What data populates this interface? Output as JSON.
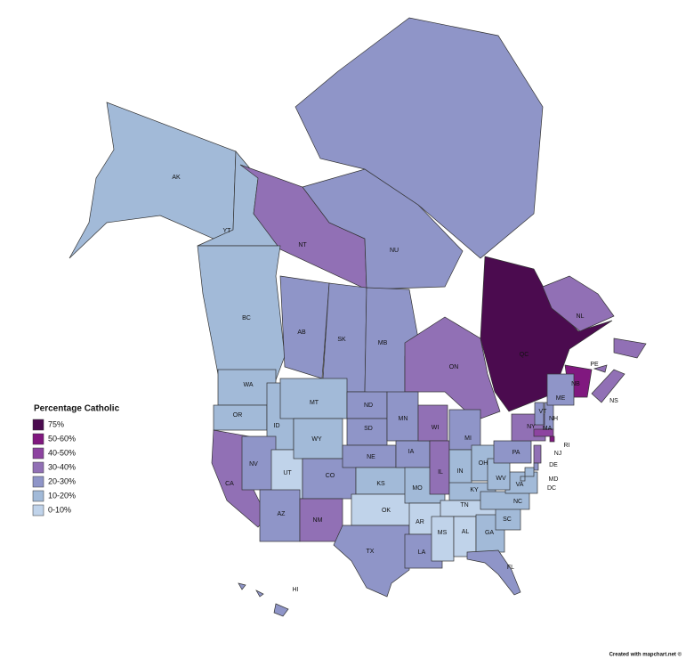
{
  "legend": {
    "title": "Percentage Catholic",
    "items": [
      {
        "label": "75%",
        "color": "#4b0b4f"
      },
      {
        "label": "50-60%",
        "color": "#80187f"
      },
      {
        "label": "40-50%",
        "color": "#8d44a0"
      },
      {
        "label": "30-40%",
        "color": "#9170b5"
      },
      {
        "label": "20-30%",
        "color": "#8f95c8"
      },
      {
        "label": "10-20%",
        "color": "#a2bad8"
      },
      {
        "label": "0-10%",
        "color": "#c0d3ea"
      }
    ]
  },
  "regions": [
    {
      "label": "AK",
      "color": "#a2bad8"
    },
    {
      "label": "YT",
      "color": "#a2bad8"
    },
    {
      "label": "NT",
      "color": "#9170b5"
    },
    {
      "label": "NU",
      "color": "#8f95c8"
    },
    {
      "label": "BC",
      "color": "#a2bad8"
    },
    {
      "label": "AB",
      "color": "#8f95c8"
    },
    {
      "label": "SK",
      "color": "#8f95c8"
    },
    {
      "label": "MB",
      "color": "#8f95c8"
    },
    {
      "label": "ON",
      "color": "#9170b5"
    },
    {
      "label": "QC",
      "color": "#4b0b4f"
    },
    {
      "label": "NL",
      "color": "#9170b5"
    },
    {
      "label": "NB",
      "color": "#80187f"
    },
    {
      "label": "NS",
      "color": "#9170b5"
    },
    {
      "label": "PE",
      "color": "#9170b5"
    },
    {
      "label": "WA",
      "color": "#a2bad8"
    },
    {
      "label": "OR",
      "color": "#a2bad8"
    },
    {
      "label": "CA",
      "color": "#9170b5"
    },
    {
      "label": "ID",
      "color": "#a2bad8"
    },
    {
      "label": "NV",
      "color": "#8f95c8"
    },
    {
      "label": "UT",
      "color": "#c0d3ea"
    },
    {
      "label": "AZ",
      "color": "#8f95c8"
    },
    {
      "label": "MT",
      "color": "#a2bad8"
    },
    {
      "label": "WY",
      "color": "#a2bad8"
    },
    {
      "label": "CO",
      "color": "#8f95c8"
    },
    {
      "label": "NM",
      "color": "#9170b5"
    },
    {
      "label": "ND",
      "color": "#8f95c8"
    },
    {
      "label": "SD",
      "color": "#8f95c8"
    },
    {
      "label": "NE",
      "color": "#8f95c8"
    },
    {
      "label": "KS",
      "color": "#a2bad8"
    },
    {
      "label": "OK",
      "color": "#c0d3ea"
    },
    {
      "label": "TX",
      "color": "#8f95c8"
    },
    {
      "label": "MN",
      "color": "#8f95c8"
    },
    {
      "label": "IA",
      "color": "#8f95c8"
    },
    {
      "label": "MO",
      "color": "#a2bad8"
    },
    {
      "label": "AR",
      "color": "#c0d3ea"
    },
    {
      "label": "LA",
      "color": "#8f95c8"
    },
    {
      "label": "WI",
      "color": "#9170b5"
    },
    {
      "label": "IL",
      "color": "#9170b5"
    },
    {
      "label": "MI",
      "color": "#8f95c8"
    },
    {
      "label": "IN",
      "color": "#a2bad8"
    },
    {
      "label": "OH",
      "color": "#a2bad8"
    },
    {
      "label": "KY",
      "color": "#a2bad8"
    },
    {
      "label": "TN",
      "color": "#c0d3ea"
    },
    {
      "label": "MS",
      "color": "#c0d3ea"
    },
    {
      "label": "AL",
      "color": "#c0d3ea"
    },
    {
      "label": "GA",
      "color": "#a2bad8"
    },
    {
      "label": "FL",
      "color": "#8f95c8"
    },
    {
      "label": "SC",
      "color": "#a2bad8"
    },
    {
      "label": "NC",
      "color": "#a2bad8"
    },
    {
      "label": "VA",
      "color": "#a2bad8"
    },
    {
      "label": "WV",
      "color": "#a2bad8"
    },
    {
      "label": "PA",
      "color": "#8f95c8"
    },
    {
      "label": "NY",
      "color": "#9170b5"
    },
    {
      "label": "VT",
      "color": "#8f95c8"
    },
    {
      "label": "NH",
      "color": "#8f95c8"
    },
    {
      "label": "ME",
      "color": "#8f95c8"
    },
    {
      "label": "MA",
      "color": "#8d44a0"
    },
    {
      "label": "RI",
      "color": "#80187f"
    },
    {
      "label": "NJ",
      "color": "#9170b5"
    },
    {
      "label": "DE",
      "color": "#8f95c8"
    },
    {
      "label": "MD",
      "color": "#a2bad8"
    },
    {
      "label": "DC",
      "color": "#a2bad8"
    },
    {
      "label": "HI",
      "color": "#8f95c8"
    }
  ],
  "credit": "Created with mapchart.net ©"
}
